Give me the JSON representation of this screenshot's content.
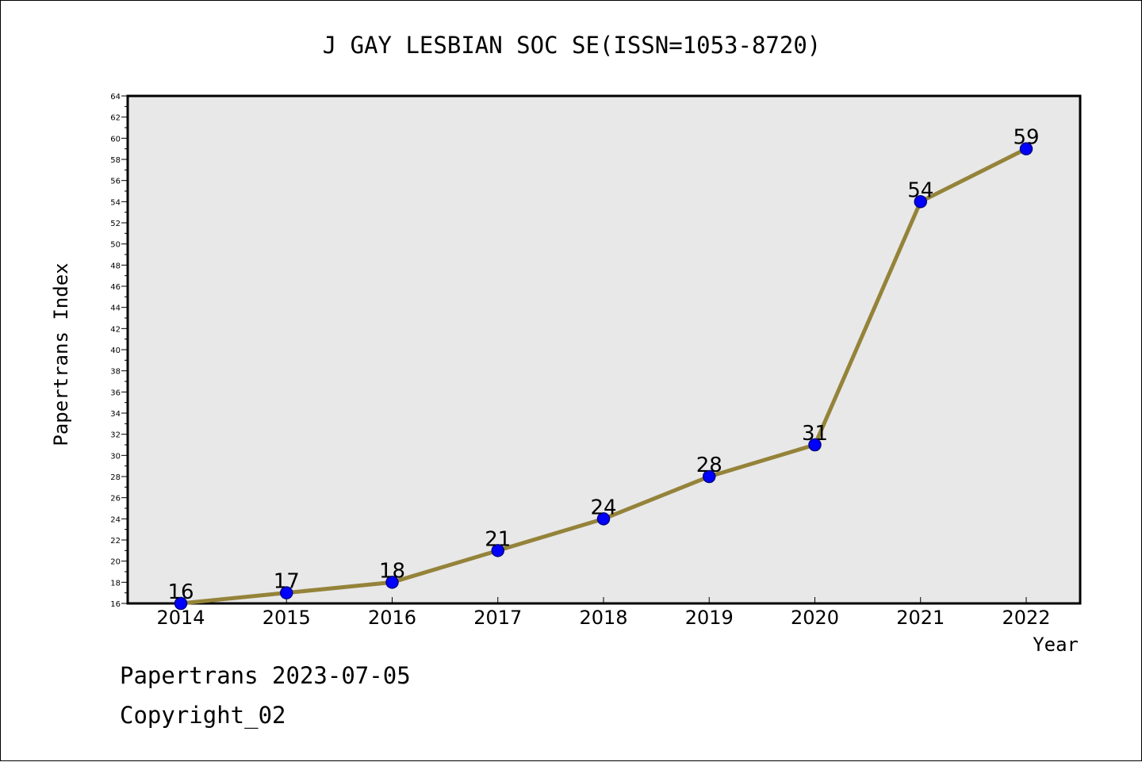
{
  "chart_data": {
    "type": "line",
    "title": "J GAY LESBIAN SOC SE(ISSN=1053-8720)",
    "xlabel": "Year",
    "ylabel": "Papertrans Index",
    "categories": [
      "2014",
      "2015",
      "2016",
      "2017",
      "2018",
      "2019",
      "2020",
      "2021",
      "2022"
    ],
    "series": [
      {
        "values": [
          16,
          17,
          18,
          21,
          24,
          28,
          31,
          54,
          59
        ]
      }
    ],
    "data_labels": [
      "16",
      "17",
      "18",
      "21",
      "24",
      "28",
      "31",
      "54",
      "59"
    ],
    "ylim": [
      16,
      64
    ],
    "yticks": [
      "16",
      "18",
      "20",
      "22",
      "24",
      "26",
      "28",
      "30",
      "32",
      "34",
      "36",
      "38",
      "40",
      "42",
      "44",
      "46",
      "48",
      "50",
      "52",
      "54",
      "56",
      "58",
      "60",
      "62",
      "64"
    ],
    "grid": false,
    "legend": "none",
    "colors": {
      "line": "#948339",
      "marker_fill": "#0000ff",
      "marker_stroke": "#00008b",
      "plot_background": "#e8e8e8"
    }
  },
  "footer": {
    "line1": "Papertrans 2023-07-05",
    "line2": "Copyright_02"
  }
}
